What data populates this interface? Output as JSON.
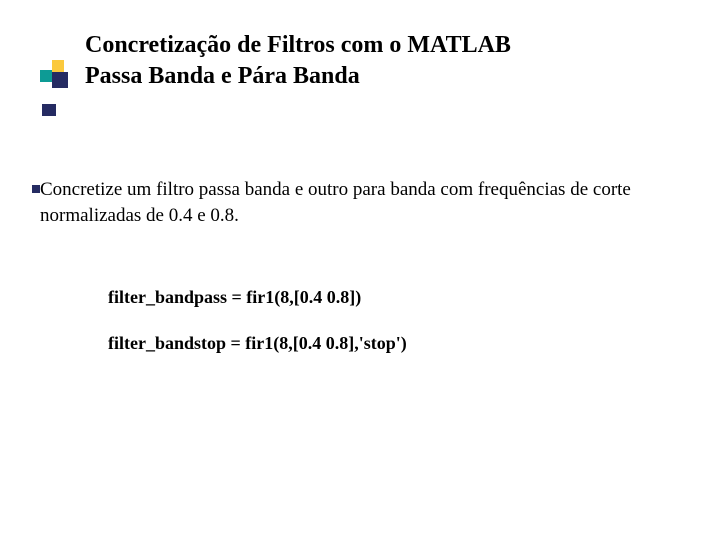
{
  "slide": {
    "title_line1": "Concretização de Filtros com o MATLAB",
    "title_line2": "Passa Banda e Pára Banda",
    "body_text": "Concretize um filtro passa  banda e outro para banda com frequências de corte normalizadas de  0.4 e  0.8.",
    "code_line1": "filter_bandpass = fir1(8,[0.4  0.8])",
    "code_line2": "filter_bandstop = fir1(8,[0.4  0.8],'stop')"
  },
  "styling": {
    "background_color": "#ffffff",
    "title_fontsize": 24,
    "title_fontweight": "bold",
    "title_color": "#000000",
    "body_fontsize": 19,
    "body_color": "#000000",
    "code_fontsize": 18,
    "code_fontweight": "bold",
    "code_color": "#000000",
    "font_family": "Times New Roman, Times, serif",
    "bullet_colors": {
      "yellow": "#fbc93d",
      "teal": "#0d9b95",
      "navy": "#252b62"
    }
  }
}
